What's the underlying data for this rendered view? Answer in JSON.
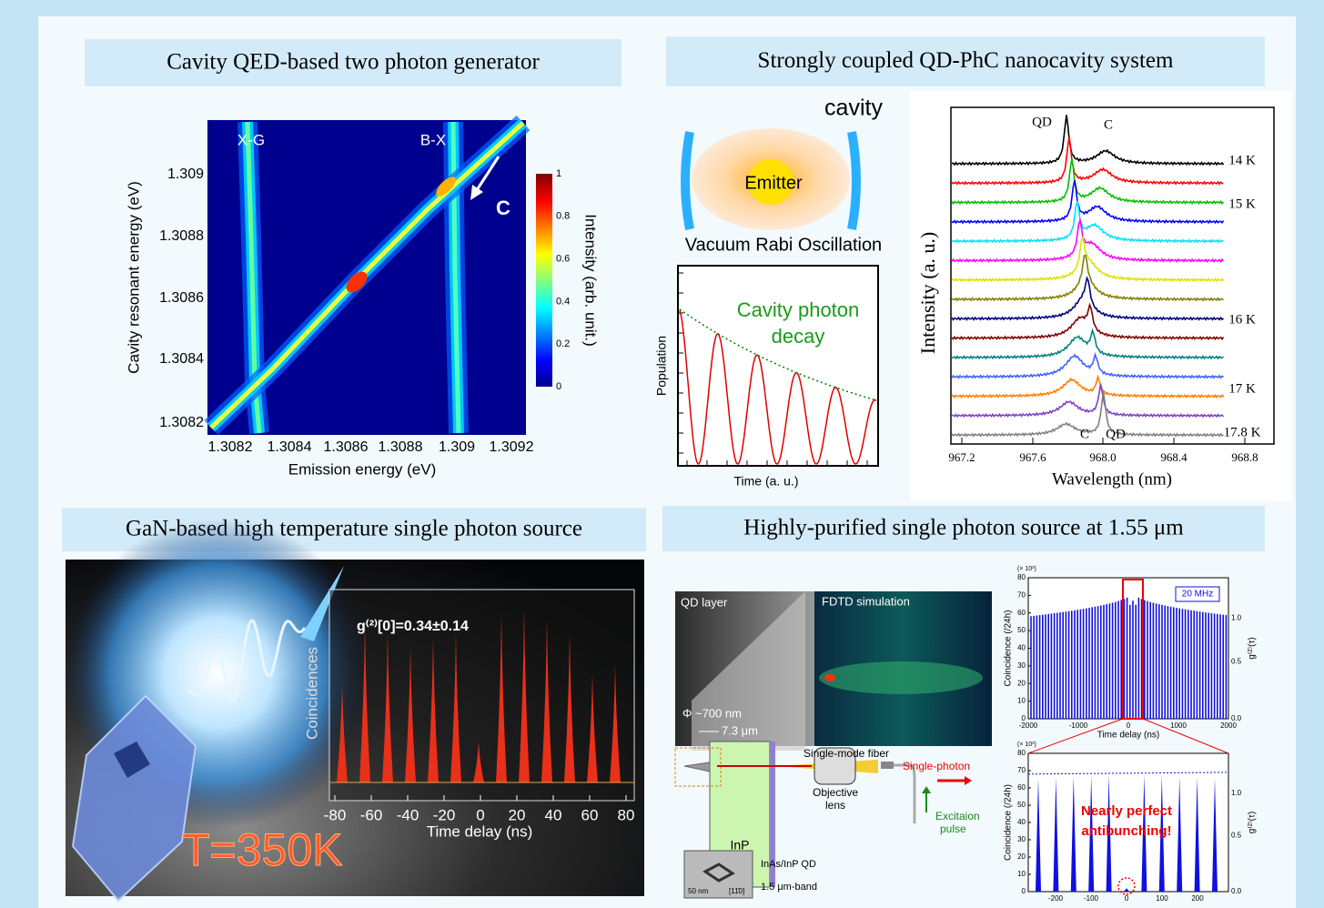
{
  "qed": {
    "title": "Cavity QED-based two photon generator",
    "xg": "X-G",
    "bx": "B-X",
    "c": "C",
    "y_label": "Cavity resonant energy (eV)",
    "x_label": "Emission energy (eV)",
    "y_ticks": [
      "1.309",
      "1.3088",
      "1.3086",
      "1.3084",
      "1.3082"
    ],
    "x_ticks": [
      "1.3082",
      "1.3084",
      "1.3086",
      "1.3088",
      "1.309",
      "1.3092"
    ],
    "colorbar_label": "Intensity (arb. unit.)",
    "colorbar_ticks": [
      "1",
      "0.8",
      "0.6",
      "0.4",
      "0.2",
      "0"
    ]
  },
  "strong": {
    "title": "Strongly coupled QD-PhC nanocavity system",
    "cavity": "cavity",
    "emitter": "Emitter",
    "rabi": "Vacuum Rabi Oscillation",
    "decay": [
      "Cavity photon",
      "decay"
    ],
    "population": "Population",
    "time": "Time (a. u.)",
    "spectrum": {
      "y_label": "Intensity (a. u.)",
      "x_label": "Wavelength (nm)",
      "x_ticks": [
        "967.2",
        "967.6",
        "968.0",
        "968.4",
        "968.8"
      ],
      "temps": [
        "14 K",
        "15 K",
        "16 K",
        "17 K",
        "17.8 K"
      ],
      "top_qd": "QD",
      "top_c": "C",
      "bottom_c": "C",
      "bottom_qd": "QD"
    }
  },
  "gan": {
    "title": "GaN-based high temperature single photon source",
    "g2": "g⁽²⁾[0]=0.34±0.14",
    "y_label": "Coincidences",
    "x_label": "Time delay (ns)",
    "x_ticks": [
      "-80",
      "-60",
      "-40",
      "-20",
      "0",
      "20",
      "40",
      "60",
      "80"
    ],
    "temperature": "T=350K"
  },
  "purified": {
    "title": "Highly-purified single photon source at 1.55 μm",
    "qd_layer": "QD layer",
    "fdtd": "FDTD simulation",
    "diameter": "Φ ~700 nm",
    "length": "7.3 μm",
    "fiber": "Single-mode fiber",
    "single_photon": "Single-photon",
    "objective": [
      "Objective",
      "lens"
    ],
    "excitation": [
      "Excitaion",
      "pulse"
    ],
    "inp": "InP",
    "qd": "InAs/InP QD",
    "band": "1.5 μm-band",
    "scale": "50 nm",
    "direction": "[11̄0]",
    "top_plot": {
      "multiplier": "(× 10³)",
      "y_label": "Coincidence (/24h)",
      "y2_label": "g⁽²⁾(τ)",
      "y_ticks": [
        "0",
        "10",
        "20",
        "30",
        "40",
        "50",
        "60",
        "70",
        "80"
      ],
      "y2_ticks": [
        "0.0",
        "0.5",
        "1.0"
      ],
      "x_ticks": [
        "-2000",
        "-1000",
        "0",
        "1000",
        "2000"
      ],
      "x_label": "Time delay (ns)",
      "rep": "20 MHz"
    },
    "bottom_plot": {
      "multiplier": "(× 10³)",
      "y_label": "Coincidence (/24h)",
      "y2_label": "g⁽²⁾(τ)",
      "y_ticks": [
        "0",
        "10",
        "20",
        "30",
        "40",
        "50",
        "60",
        "70",
        "80"
      ],
      "y2_ticks": [
        "0.0",
        "0.5",
        "1.0"
      ],
      "x_ticks": [
        "-200",
        "-100",
        "0",
        "100",
        "200"
      ],
      "x_label": "Time delay (ns)",
      "note": [
        "Nearly perfect",
        "antibunching!"
      ]
    }
  }
}
